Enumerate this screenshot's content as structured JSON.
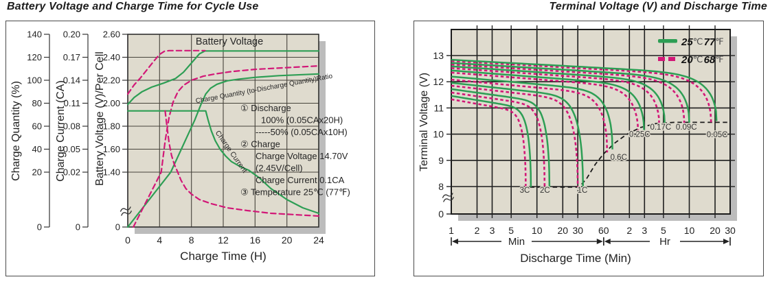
{
  "colors": {
    "green": "#2d9e54",
    "pink": "#d21777",
    "ink": "#222222",
    "grid_left": "#45423a",
    "grid_right": "#1e1e1e",
    "beige": "#dfdbce",
    "shadow": "#bcbcbc",
    "cutoff": "#1a1a1a"
  },
  "chart_data": [
    {
      "type": "line",
      "title": "Battery Voltage and Charge Time for Cycle Use",
      "xlabel": "Charge Time (H)",
      "x_range": [
        0,
        24
      ],
      "x_ticks": [
        "0",
        "4",
        "8",
        "12",
        "16",
        "20",
        "24"
      ],
      "grid": true,
      "y_break": true,
      "axes": [
        {
          "title": "Charge Quantity (%)",
          "ticks": [
            "140",
            "120",
            "100",
            "80",
            "60",
            "40",
            "20",
            "0"
          ]
        },
        {
          "title": "Charge Current (CA)",
          "ticks": [
            "0.20",
            "0.17",
            "0.14",
            "0.11",
            "0.08",
            "0.05",
            "0.02",
            "0"
          ]
        },
        {
          "title": "Battery Voltage (V)/Per Cell",
          "ticks": [
            "2.60",
            "2.40",
            "2.20",
            "2.00",
            "1.80",
            "1.60",
            "1.40",
            "0"
          ]
        }
      ],
      "series": [
        {
          "name": "battery-voltage-100pct",
          "label": "Battery Voltage (100% discharge)",
          "axis": "voltage",
          "color": "green",
          "dash": false,
          "points": [
            [
              0,
              1.99
            ],
            [
              0.8,
              2.05
            ],
            [
              1.8,
              2.1
            ],
            [
              3,
              2.14
            ],
            [
              4.5,
              2.175
            ],
            [
              6,
              2.215
            ],
            [
              7,
              2.27
            ],
            [
              8,
              2.35
            ],
            [
              9,
              2.43
            ],
            [
              9.7,
              2.455
            ],
            [
              11,
              2.455
            ],
            [
              24,
              2.455
            ]
          ]
        },
        {
          "name": "battery-voltage-50pct",
          "label": "Battery Voltage (50% discharge)",
          "axis": "voltage",
          "color": "pink",
          "dash": true,
          "points": [
            [
              0,
              2.08
            ],
            [
              0.8,
              2.16
            ],
            [
              1.6,
              2.22
            ],
            [
              2.4,
              2.29
            ],
            [
              3.2,
              2.36
            ],
            [
              4,
              2.425
            ],
            [
              4.6,
              2.452
            ],
            [
              5.2,
              2.458
            ],
            [
              9.7,
              2.458
            ]
          ]
        },
        {
          "name": "charge-quantity-100pct",
          "label": "Charge Quantity Ratio (100% discharge)",
          "axis": "quantity",
          "color": "green",
          "dash": false,
          "points": [
            [
              0,
              0
            ],
            [
              5.4,
              20
            ],
            [
              6.6,
              38
            ],
            [
              7.6,
              53
            ],
            [
              8.4,
              65
            ],
            [
              9.2,
              79
            ],
            [
              9.8,
              88
            ],
            [
              10.4,
              93
            ],
            [
              11.2,
              96.5
            ],
            [
              12.5,
              99.5
            ],
            [
              14,
              101
            ],
            [
              16,
              102.5
            ],
            [
              19,
              104
            ],
            [
              24,
              105.5
            ]
          ]
        },
        {
          "name": "charge-quantity-50pct",
          "label": "Charge Quantity Ratio (50% discharge)",
          "axis": "quantity",
          "color": "pink",
          "dash": true,
          "points": [
            [
              0.7,
              0
            ],
            [
              4.2,
              20
            ],
            [
              4.7,
              47
            ],
            [
              5.2,
              68
            ],
            [
              5.7,
              81
            ],
            [
              6.3,
              90
            ],
            [
              7,
              95.5
            ],
            [
              8,
              100
            ],
            [
              9.5,
              103.5
            ],
            [
              11,
              105.5
            ],
            [
              13,
              107.5
            ],
            [
              16,
              109.5
            ],
            [
              20,
              111
            ],
            [
              24,
              112.5
            ]
          ]
        },
        {
          "name": "charge-current-100pct",
          "label": "Charge Current (100% discharge)",
          "axis": "current",
          "color": "green",
          "dash": false,
          "points": [
            [
              0,
              0.1
            ],
            [
              9.8,
              0.1
            ],
            [
              10.1,
              0.088
            ],
            [
              10.5,
              0.074
            ],
            [
              11,
              0.061
            ],
            [
              11.6,
              0.05
            ],
            [
              12.3,
              0.041
            ],
            [
              13,
              0.034
            ],
            [
              14,
              0.028
            ],
            [
              15.2,
              0.0225
            ],
            [
              16.5,
              0.018
            ],
            [
              18,
              0.014
            ],
            [
              20,
              0.01
            ],
            [
              22,
              0.007
            ],
            [
              24,
              0.005
            ]
          ]
        },
        {
          "name": "charge-current-50pct",
          "label": "Charge Current (50% discharge)",
          "axis": "current",
          "color": "pink",
          "dash": true,
          "points": [
            [
              4.7,
              0.1
            ],
            [
              4.95,
              0.078
            ],
            [
              5.2,
              0.058
            ],
            [
              5.5,
              0.042
            ],
            [
              5.85,
              0.03
            ],
            [
              6.2,
              0.022
            ],
            [
              6.7,
              0.017
            ],
            [
              7.3,
              0.014
            ],
            [
              8,
              0.012
            ],
            [
              9,
              0.01
            ],
            [
              10.5,
              0.0085
            ],
            [
              12.5,
              0.007
            ],
            [
              15,
              0.006
            ],
            [
              18,
              0.005
            ],
            [
              21,
              0.0045
            ],
            [
              24,
              0.004
            ]
          ]
        }
      ],
      "curve_labels": [
        {
          "text": "Battery Voltage",
          "x": 334,
          "y": 65,
          "rotate": 0,
          "size": 14.5
        },
        {
          "text": "Charge Quantity (to-Discharge Quantity)Ratio",
          "x": 385,
          "y": 132,
          "rotate": -10.5,
          "size": 10
        },
        {
          "text": "Charge Current",
          "x": 334,
          "y": 223,
          "rotate": 55,
          "size": 10.5
        }
      ],
      "annotations": {
        "x": 350,
        "y0": 162,
        "lh": 17.5,
        "size": 13,
        "lines": [
          {
            "t": "① Discharge",
            "dx": 0
          },
          {
            "t": "100% (0.05CAx20H)",
            "dx": 30
          },
          {
            "t": "-----50% (0.05CAx10H)",
            "dx": 22
          },
          {
            "t": "② Charge",
            "dx": 0
          },
          {
            "t": "Charge Voltage 14.70V",
            "dx": 22
          },
          {
            "t": "(2.45V/Cell)",
            "dx": 22
          },
          {
            "t": "Charge Current 0.1CA",
            "dx": 22
          },
          {
            "t": "③ Temperature 25℃ (77℉)",
            "dx": 0
          }
        ]
      }
    },
    {
      "type": "line",
      "title": "Terminal Voltage (V) and Discharge Time",
      "xlabel": "Discharge Time (Min)",
      "ylabel": "Terminal Voltage (V)",
      "x_scale": "log",
      "grid": true,
      "y_break": true,
      "y_ticks": [
        "13",
        "12",
        "11",
        "10",
        "9",
        "8"
      ],
      "y_zero": "0",
      "min_tick_values": [
        1,
        2,
        3,
        5,
        10,
        20,
        30,
        60
      ],
      "min_tick_labels": [
        "1",
        "2",
        "3",
        "5",
        "10",
        "20",
        "30",
        "60"
      ],
      "hr_tick_values": [
        120,
        180,
        300,
        600,
        1200,
        1800
      ],
      "hr_tick_labels": [
        "2",
        "3",
        "5",
        "10",
        "20",
        "30"
      ],
      "range_bars": [
        {
          "label": "Min",
          "from": 1,
          "to": 60,
          "text_center": 752
        },
        {
          "label": "Hr",
          "from": 60,
          "to": 1800,
          "text_center": 968
        }
      ],
      "legend": [
        {
          "num1": "25",
          "unit1": "℃",
          "num2": "77",
          "unit2": "℉",
          "style": "solid",
          "color": "green"
        },
        {
          "num1": "20",
          "unit1": "℃",
          "num2": "68",
          "unit2": "℉",
          "style": "dashed",
          "color": "pink"
        }
      ],
      "series": [
        {
          "rate": "3C",
          "v_start": [
            11.46,
            11.33
          ],
          "t_end": [
            8.5,
            7.4
          ],
          "v_end": [
            7.88,
            7.88
          ],
          "sag": 0.5,
          "label_at": [
            7.2,
            6.2
          ]
        },
        {
          "rate": "2C",
          "v_start": [
            11.72,
            11.59
          ],
          "t_end": [
            14.0,
            12.3
          ],
          "v_end": [
            7.88,
            7.88
          ],
          "sag": 0.52,
          "label_at": [
            12.4,
            6.2
          ]
        },
        {
          "rate": "1C",
          "v_start": [
            11.96,
            11.85
          ],
          "t_end": [
            34.5,
            30.0
          ],
          "v_end": [
            7.88,
            7.88
          ],
          "sag": 0.55,
          "label_at": [
            34,
            6.2
          ]
        },
        {
          "rate": "0.6C",
          "v_start": [
            12.2,
            12.08
          ],
          "t_end": [
            76,
            66
          ],
          "v_end": [
            9.42,
            9.3
          ],
          "sag": 0.55,
          "label_at": [
            90,
            9.02
          ]
        },
        {
          "rate": "0.25C",
          "v_start": [
            12.43,
            12.35
          ],
          "t_end": [
            178,
            152
          ],
          "v_end": [
            10.08,
            9.98
          ],
          "sag": 0.56,
          "label_at": [
            158,
            9.9
          ]
        },
        {
          "rate": "0.17C",
          "v_start": [
            12.59,
            12.52
          ],
          "t_end": [
            310,
            268
          ],
          "v_end": [
            10.37,
            10.3
          ],
          "sag": 0.55,
          "label_at": [
            278,
            10.17
          ]
        },
        {
          "rate": "0.09C",
          "v_start": [
            12.72,
            12.66
          ],
          "t_end": [
            600,
            525
          ],
          "v_end": [
            10.44,
            10.38
          ],
          "sag": 0.55,
          "label_at": [
            555,
            10.17
          ]
        },
        {
          "rate": "0.05C",
          "v_start": [
            12.84,
            12.79
          ],
          "t_end": [
            1250,
            1080
          ],
          "v_end": [
            10.5,
            10.44
          ],
          "sag": 0.55,
          "label_at": [
            1270,
            9.88
          ]
        }
      ],
      "cutoff_curve": {
        "name": "final-discharge-voltage",
        "points": [
          [
            8.3,
            7.85
          ],
          [
            31,
            7.85
          ],
          [
            38,
            8.3
          ],
          [
            48,
            8.85
          ],
          [
            60,
            9.25
          ],
          [
            80,
            9.65
          ],
          [
            110,
            9.98
          ],
          [
            160,
            10.25
          ],
          [
            240,
            10.4
          ],
          [
            400,
            10.45
          ],
          [
            1750,
            10.45
          ]
        ]
      }
    }
  ]
}
